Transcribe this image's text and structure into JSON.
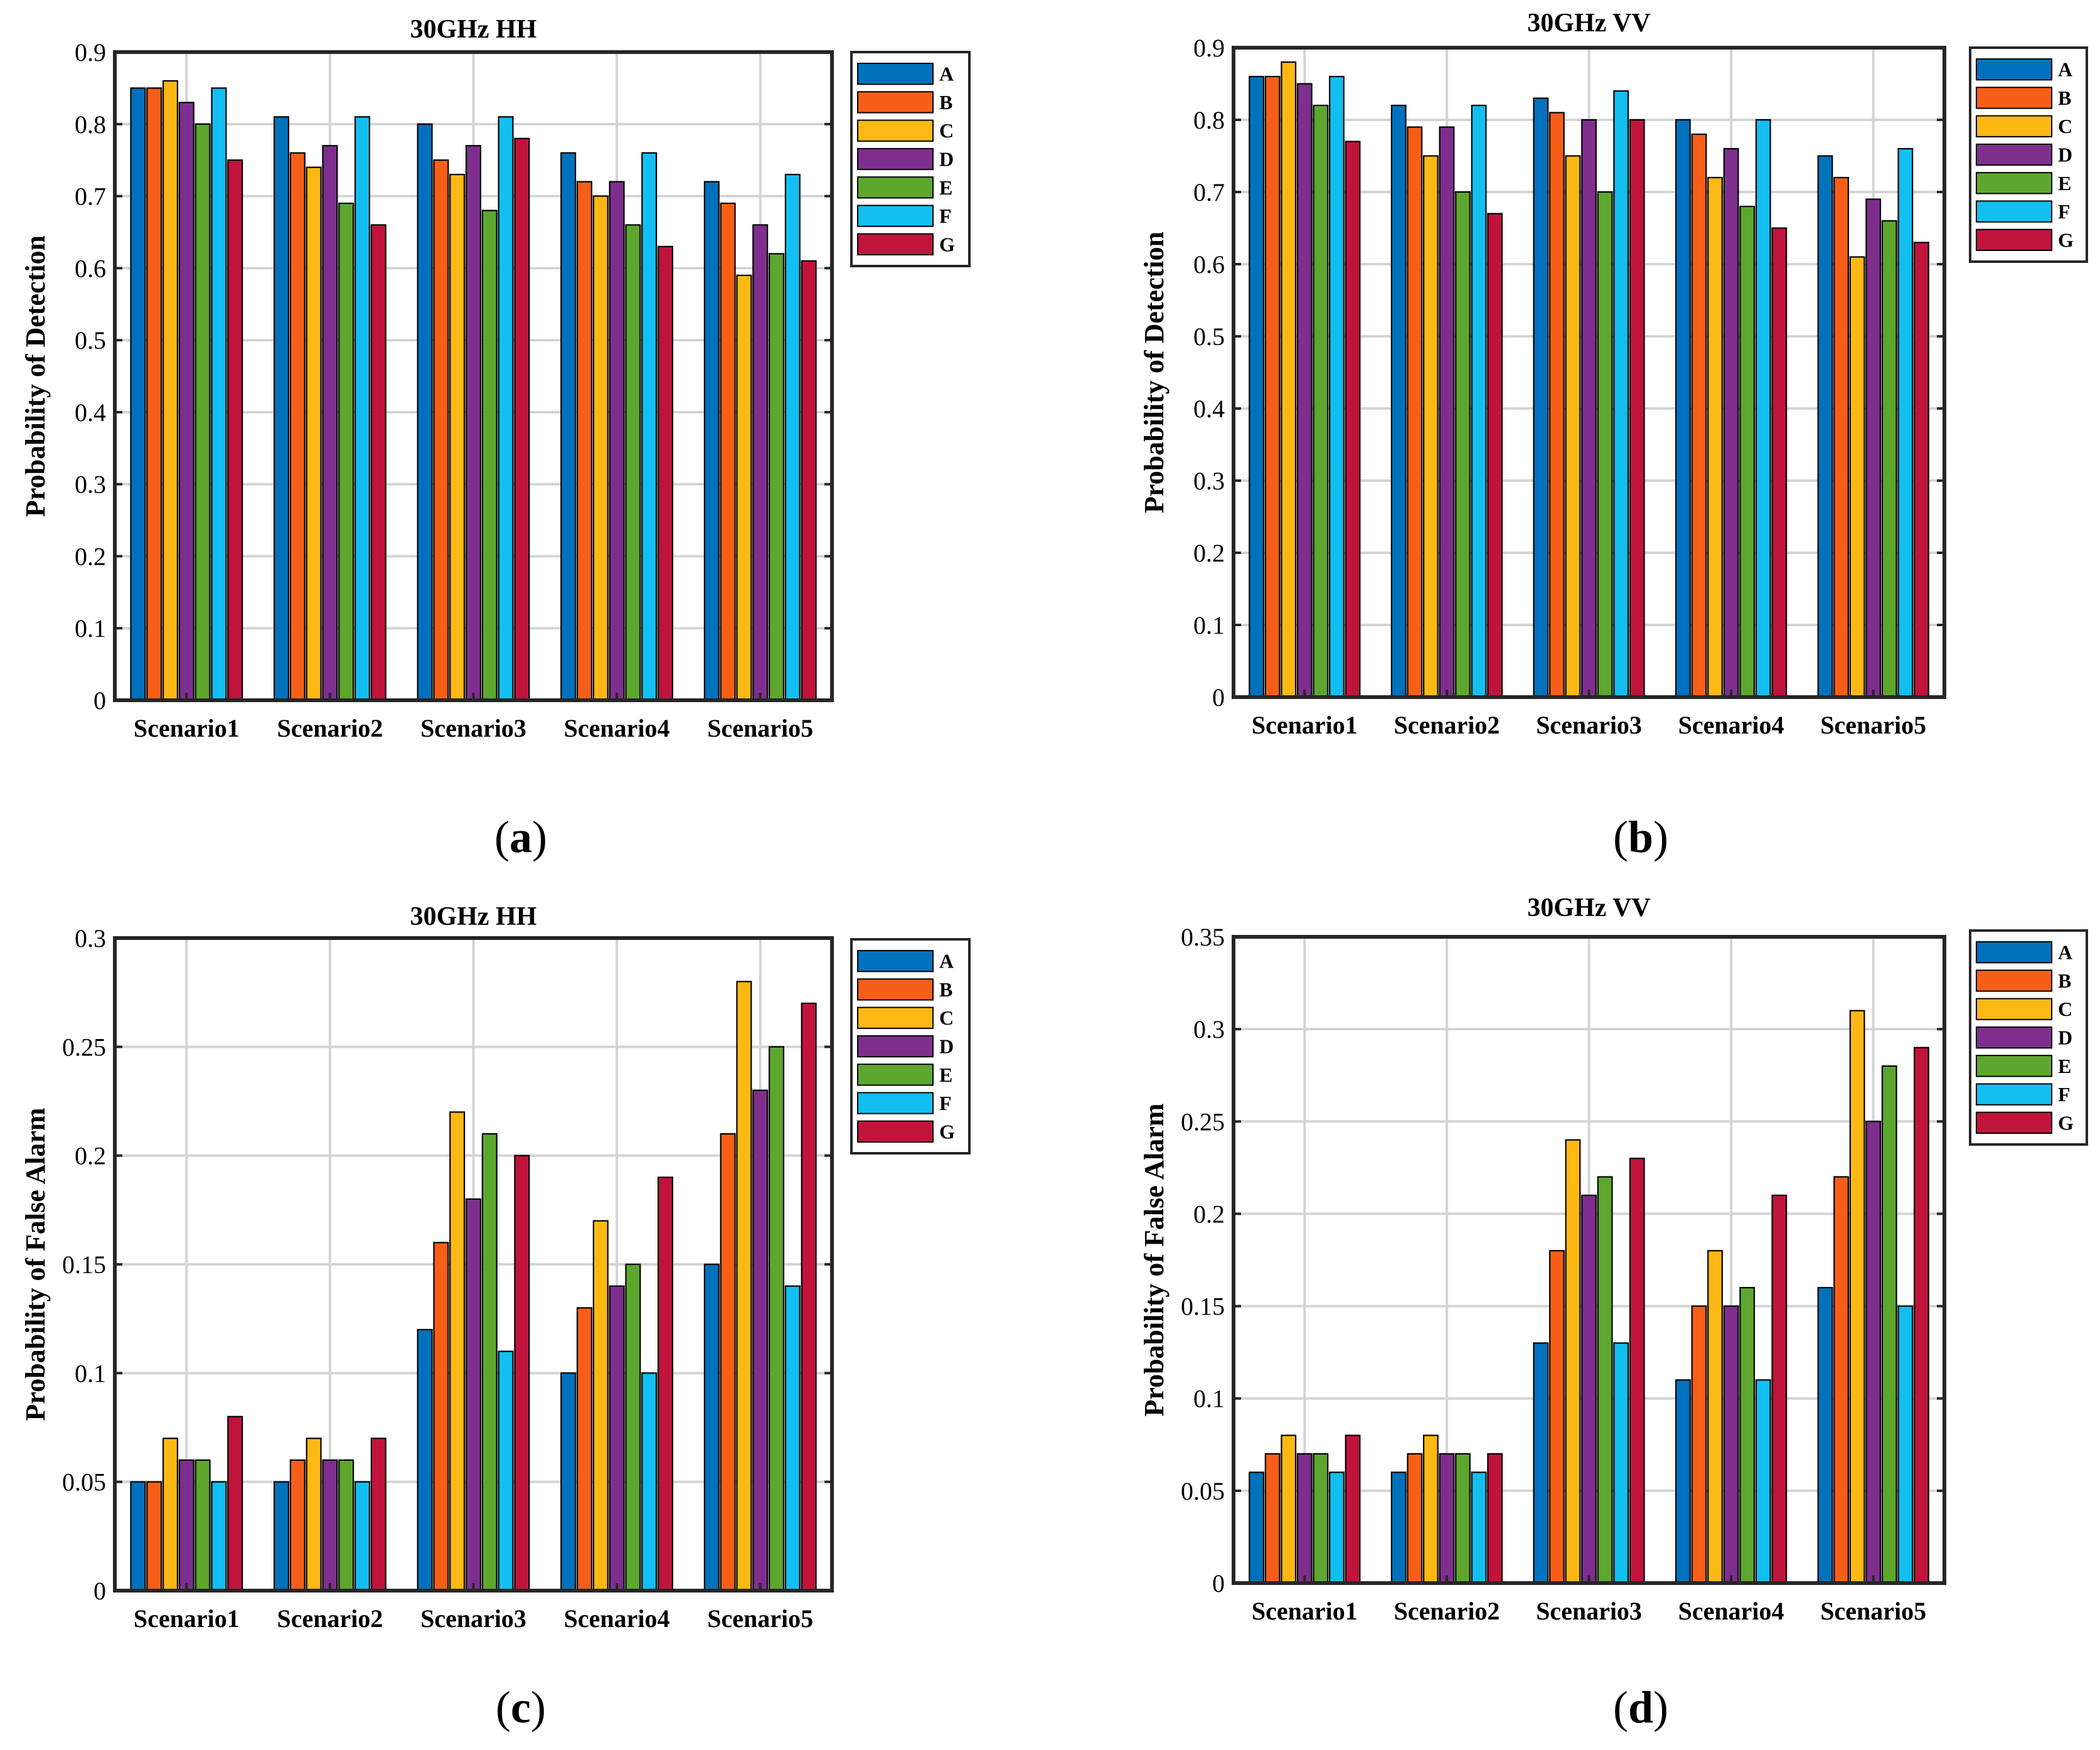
{
  "chart_data": [
    {
      "type": "bar",
      "panel_label": "a",
      "title": "30GHz HH",
      "xlabel": "",
      "ylabel": "Probability of Detection",
      "ylim": [
        0,
        0.9
      ],
      "yticks": [
        "0",
        "0.1",
        "0.2",
        "0.3",
        "0.4",
        "0.5",
        "0.6",
        "0.7",
        "0.8",
        "0.9"
      ],
      "categories": [
        "Scenario1",
        "Scenario2",
        "Scenario3",
        "Scenario4",
        "Scenario5"
      ],
      "grid": true,
      "legend_position": "outside-top-right",
      "series": [
        {
          "name": "A",
          "color": "#0072BD",
          "values": [
            0.85,
            0.81,
            0.8,
            0.76,
            0.72
          ]
        },
        {
          "name": "B",
          "color": "#F75F18",
          "values": [
            0.85,
            0.76,
            0.75,
            0.72,
            0.69
          ]
        },
        {
          "name": "C",
          "color": "#FDB813",
          "values": [
            0.86,
            0.74,
            0.73,
            0.7,
            0.59
          ]
        },
        {
          "name": "D",
          "color": "#7E2F8E",
          "values": [
            0.83,
            0.77,
            0.77,
            0.72,
            0.66
          ]
        },
        {
          "name": "E",
          "color": "#5DA72E",
          "values": [
            0.8,
            0.69,
            0.68,
            0.66,
            0.62
          ]
        },
        {
          "name": "F",
          "color": "#12BFF0",
          "values": [
            0.85,
            0.81,
            0.81,
            0.76,
            0.73
          ]
        },
        {
          "name": "G",
          "color": "#C0143C",
          "values": [
            0.75,
            0.66,
            0.78,
            0.63,
            0.61
          ]
        }
      ]
    },
    {
      "type": "bar",
      "panel_label": "b",
      "title": "30GHz VV",
      "xlabel": "",
      "ylabel": "Probability of Detection",
      "ylim": [
        0,
        0.9
      ],
      "yticks": [
        "0",
        "0.1",
        "0.2",
        "0.3",
        "0.4",
        "0.5",
        "0.6",
        "0.7",
        "0.8",
        "0.9"
      ],
      "categories": [
        "Scenario1",
        "Scenario2",
        "Scenario3",
        "Scenario4",
        "Scenario5"
      ],
      "grid": true,
      "legend_position": "outside-top-right",
      "series": [
        {
          "name": "A",
          "color": "#0072BD",
          "values": [
            0.86,
            0.82,
            0.83,
            0.8,
            0.75
          ]
        },
        {
          "name": "B",
          "color": "#F75F18",
          "values": [
            0.86,
            0.79,
            0.81,
            0.78,
            0.72
          ]
        },
        {
          "name": "C",
          "color": "#FDB813",
          "values": [
            0.88,
            0.75,
            0.75,
            0.72,
            0.61
          ]
        },
        {
          "name": "D",
          "color": "#7E2F8E",
          "values": [
            0.85,
            0.79,
            0.8,
            0.76,
            0.69
          ]
        },
        {
          "name": "E",
          "color": "#5DA72E",
          "values": [
            0.82,
            0.7,
            0.7,
            0.68,
            0.66
          ]
        },
        {
          "name": "F",
          "color": "#12BFF0",
          "values": [
            0.86,
            0.82,
            0.84,
            0.8,
            0.76
          ]
        },
        {
          "name": "G",
          "color": "#C0143C",
          "values": [
            0.77,
            0.67,
            0.8,
            0.65,
            0.63
          ]
        }
      ]
    },
    {
      "type": "bar",
      "panel_label": "c",
      "title": "30GHz HH",
      "xlabel": "",
      "ylabel": "Probability of False Alarm",
      "ylim": [
        0,
        0.3
      ],
      "yticks": [
        "0",
        "0.05",
        "0.1",
        "0.15",
        "0.2",
        "0.25",
        "0.3"
      ],
      "categories": [
        "Scenario1",
        "Scenario2",
        "Scenario3",
        "Scenario4",
        "Scenario5"
      ],
      "grid": true,
      "legend_position": "outside-top-right",
      "series": [
        {
          "name": "A",
          "color": "#0072BD",
          "values": [
            0.05,
            0.05,
            0.12,
            0.1,
            0.15
          ]
        },
        {
          "name": "B",
          "color": "#F75F18",
          "values": [
            0.05,
            0.06,
            0.16,
            0.13,
            0.21
          ]
        },
        {
          "name": "C",
          "color": "#FDB813",
          "values": [
            0.07,
            0.07,
            0.22,
            0.17,
            0.28
          ]
        },
        {
          "name": "D",
          "color": "#7E2F8E",
          "values": [
            0.06,
            0.06,
            0.18,
            0.14,
            0.23
          ]
        },
        {
          "name": "E",
          "color": "#5DA72E",
          "values": [
            0.06,
            0.06,
            0.21,
            0.15,
            0.25
          ]
        },
        {
          "name": "F",
          "color": "#12BFF0",
          "values": [
            0.05,
            0.05,
            0.11,
            0.1,
            0.14
          ]
        },
        {
          "name": "G",
          "color": "#C0143C",
          "values": [
            0.08,
            0.07,
            0.2,
            0.19,
            0.27
          ]
        }
      ]
    },
    {
      "type": "bar",
      "panel_label": "d",
      "title": "30GHz VV",
      "xlabel": "",
      "ylabel": "Probability of False Alarm",
      "ylim": [
        0,
        0.35
      ],
      "yticks": [
        "0",
        "0.05",
        "0.1",
        "0.15",
        "0.2",
        "0.25",
        "0.3",
        "0.35"
      ],
      "categories": [
        "Scenario1",
        "Scenario2",
        "Scenario3",
        "Scenario4",
        "Scenario5"
      ],
      "grid": true,
      "legend_position": "outside-top-right",
      "series": [
        {
          "name": "A",
          "color": "#0072BD",
          "values": [
            0.06,
            0.06,
            0.13,
            0.11,
            0.16
          ]
        },
        {
          "name": "B",
          "color": "#F75F18",
          "values": [
            0.07,
            0.07,
            0.18,
            0.15,
            0.22
          ]
        },
        {
          "name": "C",
          "color": "#FDB813",
          "values": [
            0.08,
            0.08,
            0.24,
            0.18,
            0.31
          ]
        },
        {
          "name": "D",
          "color": "#7E2F8E",
          "values": [
            0.07,
            0.07,
            0.21,
            0.15,
            0.25
          ]
        },
        {
          "name": "E",
          "color": "#5DA72E",
          "values": [
            0.07,
            0.07,
            0.22,
            0.16,
            0.28
          ]
        },
        {
          "name": "F",
          "color": "#12BFF0",
          "values": [
            0.06,
            0.06,
            0.13,
            0.11,
            0.15
          ]
        },
        {
          "name": "G",
          "color": "#C0143C",
          "values": [
            0.08,
            0.07,
            0.23,
            0.21,
            0.29
          ]
        }
      ]
    }
  ]
}
